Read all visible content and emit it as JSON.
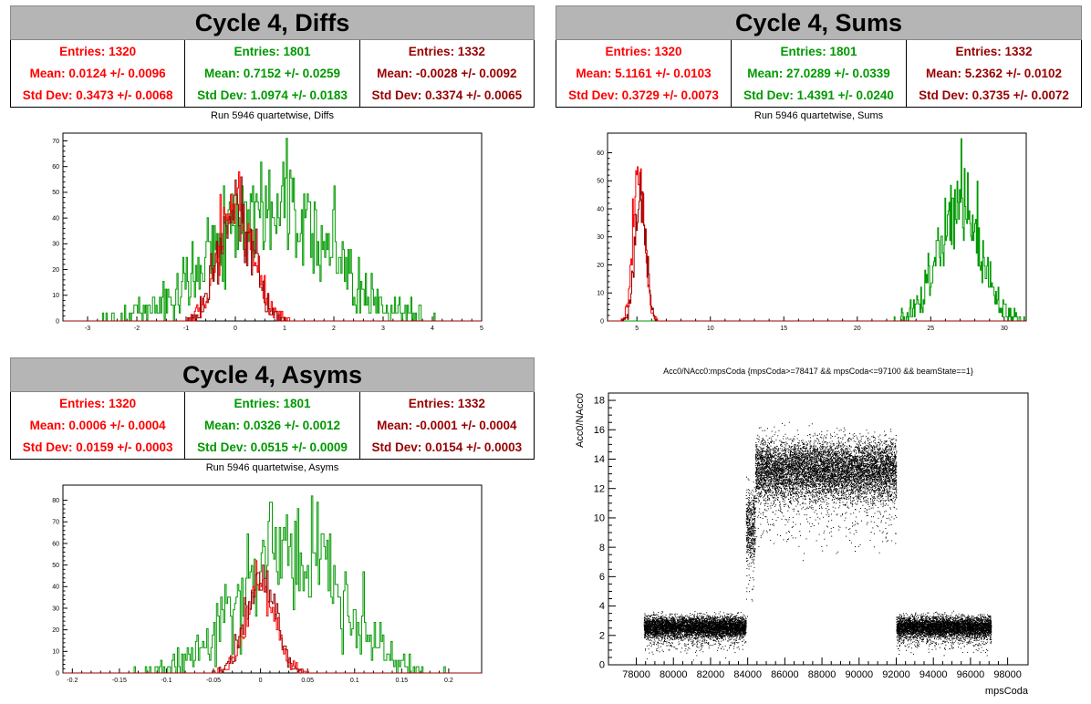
{
  "panels": [
    {
      "title": "Cycle 4, Diffs",
      "subtitle": "Run 5946 quartetwise, Diffs",
      "stats": [
        {
          "entries": "Entries: 1320",
          "mean": "Mean: 0.0124 +/- 0.0096",
          "std": "Std Dev: 0.3473 +/- 0.0068",
          "color": "#ff0000"
        },
        {
          "entries": "Entries: 1801",
          "mean": "Mean: 0.7152 +/- 0.0259",
          "std": "Std Dev: 1.0974 +/- 0.0183",
          "color": "#009900"
        },
        {
          "entries": "Entries: 1332",
          "mean": "Mean: -0.0028 +/- 0.0092",
          "std": "Std Dev: 0.3374 +/- 0.0065",
          "color": "#990000"
        }
      ]
    },
    {
      "title": "Cycle 4, Sums",
      "subtitle": "Run 5946 quartetwise, Sums",
      "stats": [
        {
          "entries": "Entries: 1320",
          "mean": "Mean: 5.1161 +/- 0.0103",
          "std": "Std Dev: 0.3729 +/- 0.0073",
          "color": "#ff0000"
        },
        {
          "entries": "Entries: 1801",
          "mean": "Mean: 27.0289 +/- 0.0339",
          "std": "Std Dev: 1.4391 +/- 0.0240",
          "color": "#009900"
        },
        {
          "entries": "Entries: 1332",
          "mean": "Mean: 5.2362 +/- 0.0102",
          "std": "Std Dev: 0.3735 +/- 0.0072",
          "color": "#990000"
        }
      ]
    },
    {
      "title": "Cycle 4, Asyms",
      "subtitle": "Run 5946 quartetwise, Asyms",
      "stats": [
        {
          "entries": "Entries: 1320",
          "mean": "Mean: 0.0006 +/- 0.0004",
          "std": "Std Dev: 0.0159 +/- 0.0003",
          "color": "#ff0000"
        },
        {
          "entries": "Entries: 1801",
          "mean": "Mean: 0.0326 +/- 0.0012",
          "std": "Std Dev: 0.0515 +/- 0.0009",
          "color": "#009900"
        },
        {
          "entries": "Entries: 1332",
          "mean": "Mean: -0.0001 +/- 0.0004",
          "std": "Std Dev: 0.0154 +/- 0.0003",
          "color": "#990000"
        }
      ]
    }
  ],
  "chart_data": [
    {
      "type": "histogram",
      "xlim": [
        -3.5,
        5
      ],
      "ylim": [
        0,
        73
      ],
      "xticks": [
        "-3",
        "-2",
        "-1",
        "0",
        "1",
        "2",
        "3",
        "4",
        "5"
      ],
      "yticks": [
        "0",
        "10",
        "20",
        "30",
        "40",
        "50",
        "60",
        "70"
      ],
      "series": [
        {
          "color": "#009900",
          "mean": 0.7152,
          "std": 1.0974,
          "entries": 1801,
          "peak": 71
        },
        {
          "color": "#ff0000",
          "mean": 0.0124,
          "std": 0.3473,
          "entries": 1320,
          "peak": 58
        },
        {
          "color": "#990000",
          "mean": -0.0028,
          "std": 0.3374,
          "entries": 1332,
          "peak": 56
        }
      ]
    },
    {
      "type": "histogram",
      "xlim": [
        3,
        31.5
      ],
      "ylim": [
        0,
        67
      ],
      "xticks": [
        "5",
        "10",
        "15",
        "20",
        "25",
        "30"
      ],
      "yticks": [
        "0",
        "10",
        "20",
        "30",
        "40",
        "50",
        "60"
      ],
      "series": [
        {
          "color": "#009900",
          "mean": 27.0289,
          "std": 1.4391,
          "entries": 1801,
          "peak": 65
        },
        {
          "color": "#ff0000",
          "mean": 5.1161,
          "std": 0.3729,
          "entries": 1320,
          "peak": 55
        },
        {
          "color": "#990000",
          "mean": 5.2362,
          "std": 0.3735,
          "entries": 1332,
          "peak": 53
        }
      ]
    },
    {
      "type": "histogram",
      "xlim": [
        -0.21,
        0.235
      ],
      "ylim": [
        0,
        87
      ],
      "xticks": [
        "-0.2",
        "-0.15",
        "-0.1",
        "-0.05",
        "0",
        "0.05",
        "0.1",
        "0.15",
        "0.2"
      ],
      "yticks": [
        "0",
        "10",
        "20",
        "30",
        "40",
        "50",
        "60",
        "70",
        "80"
      ],
      "series": [
        {
          "color": "#009900",
          "mean": 0.0326,
          "std": 0.0515,
          "entries": 1801,
          "peak": 82
        },
        {
          "color": "#ff0000",
          "mean": 0.0006,
          "std": 0.0159,
          "entries": 1320,
          "peak": 52
        },
        {
          "color": "#990000",
          "mean": -0.0001,
          "std": 0.0154,
          "entries": 1332,
          "peak": 50
        }
      ]
    },
    {
      "type": "scatter",
      "title": "Acc0/NAcc0:mpsCoda {mpsCoda>=78417 && mpsCoda<=97100 && beamState==1}",
      "xlabel": "mpsCoda",
      "ylabel": "Acc0/NAcc0",
      "xlim": [
        76500,
        99100
      ],
      "ylim": [
        0,
        18.5
      ],
      "xticks": [
        "78000",
        "80000",
        "82000",
        "84000",
        "86000",
        "88000",
        "90000",
        "92000",
        "94000",
        "96000",
        "98000"
      ],
      "yticks": [
        "0",
        "2",
        "4",
        "6",
        "8",
        "10",
        "12",
        "14",
        "16",
        "18"
      ],
      "clusters": [
        {
          "x_range": [
            78400,
            83900
          ],
          "y_center": 2.6,
          "y_spread": 0.35
        },
        {
          "x_range": [
            83900,
            84400
          ],
          "y_center": 9.4,
          "y_spread": 1.2
        },
        {
          "x_range": [
            84400,
            92000
          ],
          "y_center": 13.3,
          "y_spread": 1.0
        },
        {
          "x_range": [
            92000,
            97100
          ],
          "y_center": 2.6,
          "y_spread": 0.35
        }
      ]
    }
  ]
}
